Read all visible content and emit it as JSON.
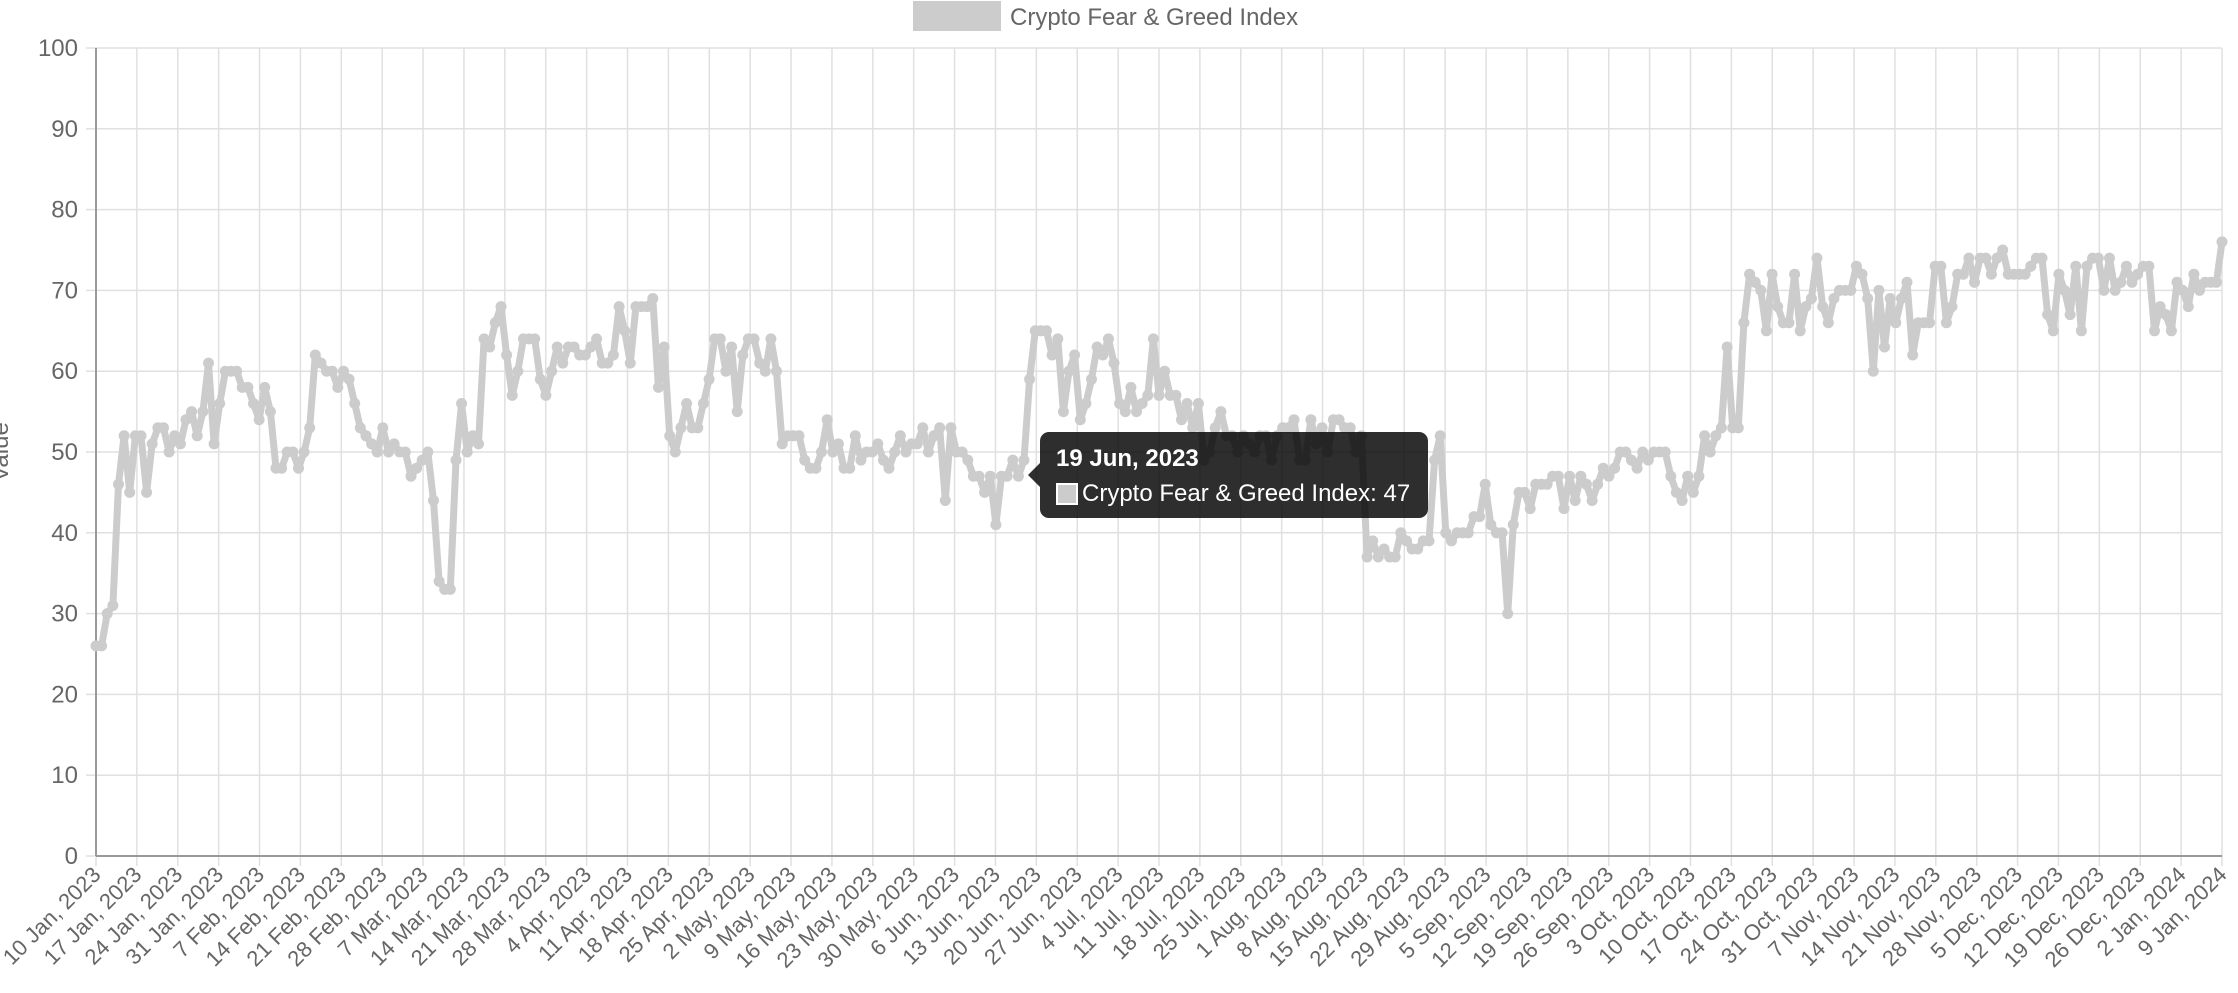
{
  "colors": {
    "series": "#cccccc",
    "grid": "#e0e0e0",
    "axis": "#999999",
    "text": "#666666",
    "tooltip_bg": "rgba(0,0,0,0.82)"
  },
  "tooltip": {
    "title": "19 Jun, 2023",
    "body": "Crypto Fear & Greed Index: 47"
  },
  "chart_data": {
    "type": "line",
    "title": "",
    "xlabel": "",
    "ylabel": "Value",
    "ylim": [
      0,
      100
    ],
    "yticks": [
      0,
      10,
      20,
      30,
      40,
      50,
      60,
      70,
      80,
      90,
      100
    ],
    "grid": true,
    "legend_position": "top-center",
    "x_start": "10 Jan, 2023",
    "x_end": "9 Jan, 2024",
    "xtick_labels": [
      "10 Jan, 2023",
      "17 Jan, 2023",
      "24 Jan, 2023",
      "31 Jan, 2023",
      "7 Feb, 2023",
      "14 Feb, 2023",
      "21 Feb, 2023",
      "28 Feb, 2023",
      "7 Mar, 2023",
      "14 Mar, 2023",
      "21 Mar, 2023",
      "28 Mar, 2023",
      "4 Apr, 2023",
      "11 Apr, 2023",
      "18 Apr, 2023",
      "25 Apr, 2023",
      "2 May, 2023",
      "9 May, 2023",
      "16 May, 2023",
      "23 May, 2023",
      "30 May, 2023",
      "6 Jun, 2023",
      "13 Jun, 2023",
      "20 Jun, 2023",
      "27 Jun, 2023",
      "4 Jul, 2023",
      "11 Jul, 2023",
      "18 Jul, 2023",
      "25 Jul, 2023",
      "1 Aug, 2023",
      "8 Aug, 2023",
      "15 Aug, 2023",
      "22 Aug, 2023",
      "29 Aug, 2023",
      "5 Sep, 2023",
      "12 Sep, 2023",
      "19 Sep, 2023",
      "26 Sep, 2023",
      "3 Oct, 2023",
      "10 Oct, 2023",
      "17 Oct, 2023",
      "24 Oct, 2023",
      "31 Oct, 2023",
      "7 Nov, 2023",
      "14 Nov, 2023",
      "21 Nov, 2023",
      "28 Nov, 2023",
      "5 Dec, 2023",
      "12 Dec, 2023",
      "19 Dec, 2023",
      "26 Dec, 2023",
      "2 Jan, 2024",
      "9 Jan, 2024"
    ],
    "series": [
      {
        "name": "Crypto Fear & Greed Index",
        "values": [
          26,
          26,
          30,
          31,
          46,
          52,
          45,
          52,
          52,
          45,
          51,
          53,
          53,
          50,
          52,
          51,
          54,
          55,
          52,
          55,
          61,
          51,
          56,
          60,
          60,
          60,
          58,
          58,
          56,
          54,
          58,
          55,
          48,
          48,
          50,
          50,
          48,
          50,
          53,
          62,
          61,
          60,
          60,
          58,
          60,
          59,
          56,
          53,
          52,
          51,
          50,
          53,
          50,
          51,
          50,
          50,
          47,
          48,
          49,
          50,
          44,
          34,
          33,
          33,
          49,
          56,
          50,
          52,
          51,
          64,
          63,
          66,
          68,
          62,
          57,
          60,
          64,
          64,
          64,
          59,
          57,
          60,
          63,
          61,
          63,
          63,
          62,
          62,
          63,
          64,
          61,
          61,
          62,
          68,
          65,
          61,
          68,
          68,
          68,
          69,
          58,
          63,
          52,
          50,
          53,
          56,
          53,
          53,
          56,
          59,
          64,
          64,
          60,
          63,
          55,
          62,
          64,
          64,
          61,
          60,
          64,
          60,
          51,
          52,
          52,
          52,
          49,
          48,
          48,
          50,
          54,
          50,
          51,
          48,
          48,
          52,
          49,
          50,
          50,
          51,
          49,
          48,
          50,
          52,
          50,
          51,
          51,
          53,
          50,
          52,
          53,
          44,
          53,
          50,
          50,
          49,
          47,
          47,
          45,
          47,
          41,
          47,
          47,
          49,
          47,
          49,
          59,
          65,
          65,
          65,
          62,
          64,
          55,
          60,
          62,
          54,
          56,
          59,
          63,
          62,
          64,
          61,
          56,
          55,
          58,
          55,
          56,
          57,
          64,
          57,
          60,
          57,
          57,
          54,
          56,
          53,
          56,
          49,
          50,
          53,
          55,
          52,
          52,
          50,
          52,
          51,
          50,
          52,
          52,
          49,
          52,
          53,
          53,
          54,
          49,
          49,
          54,
          51,
          53,
          50,
          54,
          54,
          53,
          53,
          50,
          52,
          37,
          39,
          37,
          38,
          37,
          37,
          40,
          39,
          38,
          38,
          39,
          39,
          49,
          52,
          40,
          39,
          40,
          40,
          40,
          42,
          42,
          46,
          41,
          40,
          40,
          30,
          41,
          45,
          45,
          43,
          46,
          46,
          46,
          47,
          47,
          43,
          47,
          44,
          47,
          46,
          44,
          46,
          48,
          47,
          48,
          50,
          50,
          49,
          48,
          50,
          49,
          50,
          50,
          50,
          47,
          45,
          44,
          47,
          45,
          47,
          52,
          50,
          52,
          53,
          63,
          53,
          53,
          66,
          72,
          71,
          70,
          65,
          72,
          68,
          66,
          66,
          72,
          65,
          68,
          69,
          74,
          68,
          66,
          69,
          70,
          70,
          70,
          73,
          72,
          69,
          60,
          70,
          63,
          69,
          66,
          69,
          71,
          62,
          66,
          66,
          66,
          73,
          73,
          66,
          68,
          72,
          72,
          74,
          71,
          74,
          74,
          72,
          74,
          75,
          72,
          72,
          72,
          72,
          73,
          74,
          74,
          67,
          65,
          72,
          70,
          67,
          73,
          65,
          73,
          74,
          74,
          70,
          74,
          70,
          71,
          73,
          71,
          72,
          73,
          73,
          65,
          68,
          67,
          65,
          71,
          70,
          68,
          72,
          70,
          71,
          71,
          71,
          76
        ]
      }
    ]
  }
}
